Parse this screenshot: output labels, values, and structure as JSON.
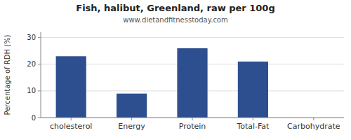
{
  "chart_data": {
    "type": "bar",
    "title": "Fish, halibut, Greenland, raw per 100g",
    "subtitle": "www.dietandfitnesstoday.com",
    "categories": [
      "cholesterol",
      "Energy",
      "Protein",
      "Total-Fat",
      "Carbohydrate"
    ],
    "values": [
      23,
      9,
      26,
      21,
      0
    ],
    "color": "#2e4f8f",
    "ylabel": "Percentage of RDH (%)",
    "ylim": [
      0,
      32
    ],
    "yticks": [
      0,
      10,
      20,
      30
    ],
    "grid": true
  }
}
